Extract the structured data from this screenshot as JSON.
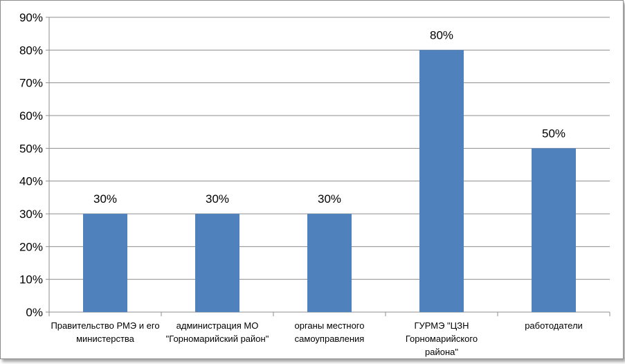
{
  "chart_data": {
    "type": "bar",
    "title": "",
    "xlabel": "",
    "ylabel": "",
    "categories": [
      [
        "Правительство РМЭ и его",
        "министерства"
      ],
      [
        "администрация МО",
        "\"Горномарийский район\""
      ],
      [
        "органы местного",
        "самоуправления"
      ],
      [
        "ГУРМЭ \"ЦЗН",
        "Горномарийского",
        "района\""
      ],
      [
        "работодатели"
      ]
    ],
    "values": [
      30,
      30,
      30,
      80,
      50
    ],
    "data_labels": [
      "30%",
      "30%",
      "30%",
      "80%",
      "50%"
    ],
    "ylim": [
      0,
      90
    ],
    "yticks": [
      0,
      10,
      20,
      30,
      40,
      50,
      60,
      70,
      80,
      90
    ],
    "ytick_labels": [
      "0%",
      "10%",
      "20%",
      "30%",
      "40%",
      "50%",
      "60%",
      "70%",
      "80%",
      "90%"
    ],
    "grid": true,
    "legend": "none",
    "colors": {
      "bar": "#4f81bd",
      "grid": "#8c8c8c",
      "axis": "#8c8c8c"
    }
  }
}
